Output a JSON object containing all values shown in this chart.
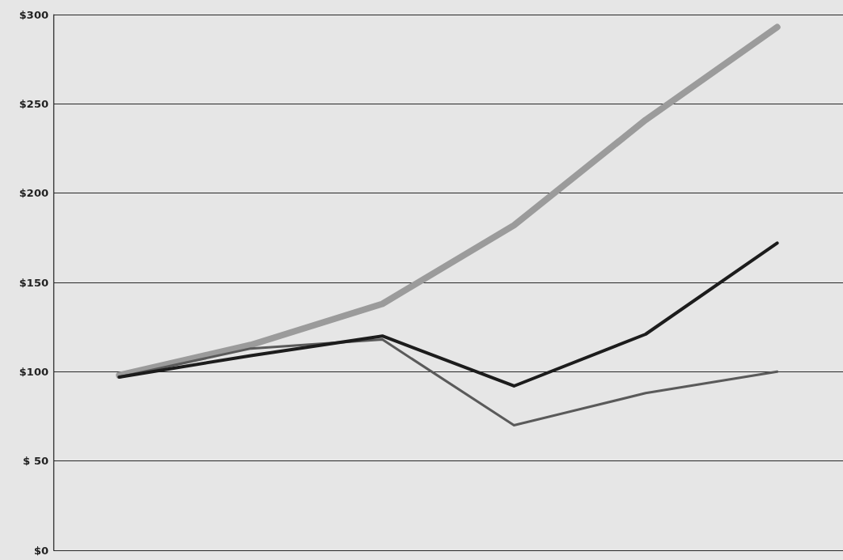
{
  "chart_data": {
    "type": "line",
    "categories": [
      null,
      null,
      null,
      null,
      null,
      null
    ],
    "series": [
      {
        "color": "#9b9b9b",
        "values": [
          98,
          115,
          138,
          182,
          241,
          293
        ]
      },
      {
        "color": "#5a5a5a",
        "values": [
          97,
          113,
          118,
          70,
          88,
          100
        ]
      },
      {
        "color": "#1c1c1c",
        "values": [
          97,
          109,
          120,
          92,
          121,
          172
        ]
      }
    ],
    "ylim": [
      0,
      300
    ],
    "yticks": [
      {
        "value": 0,
        "label": "$0"
      },
      {
        "value": 50,
        "label": "$ 50"
      },
      {
        "value": 100,
        "label": "$100"
      },
      {
        "value": 150,
        "label": "$150"
      },
      {
        "value": 200,
        "label": "$200"
      },
      {
        "value": 250,
        "label": "$250"
      },
      {
        "value": 300,
        "label": "$300"
      }
    ],
    "grid": "y",
    "marker": "none",
    "line_style": "solid",
    "tick_labels": "y"
  }
}
